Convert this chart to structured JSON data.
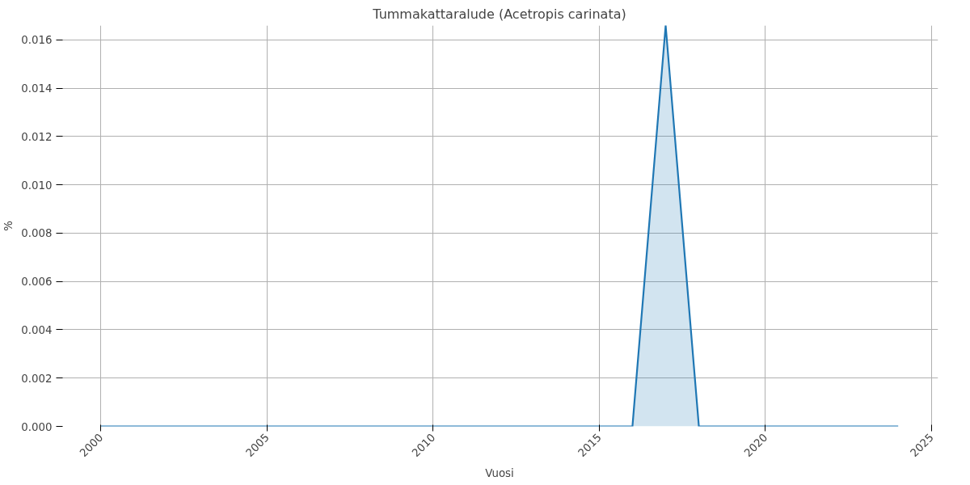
{
  "chart_data": {
    "type": "area",
    "title": "Tummakattaralude (Acetropis carinata)",
    "xlabel": "Vuosi",
    "ylabel": "%",
    "x": [
      2000,
      2001,
      2002,
      2003,
      2004,
      2005,
      2006,
      2007,
      2008,
      2009,
      2010,
      2011,
      2012,
      2013,
      2014,
      2015,
      2016,
      2017,
      2018,
      2019,
      2020,
      2021,
      2022,
      2023,
      2024
    ],
    "series": [
      {
        "color": "#1f77b4",
        "values": [
          0,
          0,
          0,
          0,
          0,
          0,
          0,
          0,
          0,
          0,
          0,
          0,
          0,
          0,
          0,
          0,
          0,
          0.0166,
          0,
          0,
          0,
          0,
          0,
          0,
          0
        ]
      }
    ],
    "xlim": [
      1998.8,
      2025.2
    ],
    "ylim": [
      0,
      0.0166
    ],
    "xticks": [
      2000,
      2005,
      2010,
      2015,
      2020,
      2025
    ],
    "yticks": [
      {
        "value": 0,
        "label": "0.000"
      },
      {
        "value": 0.002,
        "label": "0.002"
      },
      {
        "value": 0.004,
        "label": "0.004"
      },
      {
        "value": 0.006,
        "label": "0.006"
      },
      {
        "value": 0.008,
        "label": "0.008"
      },
      {
        "value": 0.01,
        "label": "0.010"
      },
      {
        "value": 0.012,
        "label": "0.012"
      },
      {
        "value": 0.014,
        "label": "0.014"
      },
      {
        "value": 0.016,
        "label": "0.016"
      }
    ],
    "grid": true,
    "line_style": "solid"
  }
}
